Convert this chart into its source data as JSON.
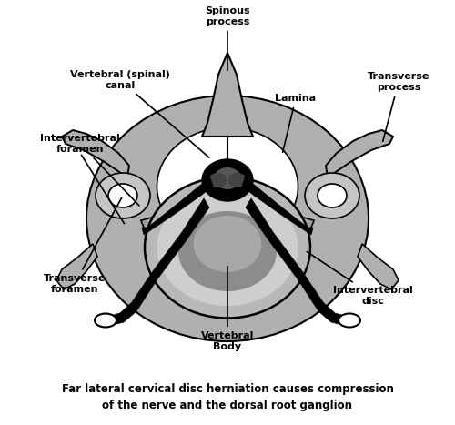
{
  "caption_line1": "Far lateral cervical disc herniation causes compression",
  "caption_line2": "of the nerve and the dorsal root ganglion",
  "background_color": "#ffffff",
  "labels": {
    "spinous_process": "Spinous\nprocess",
    "vertebral_canal": "Vertebral (spinal)\ncanal",
    "lamina": "Lamina",
    "transverse_process": "Transverse\nprocess",
    "intervertebral_foramen": "Intervertebral\nforamen",
    "transverse_foramen": "Transverse\nforamen",
    "vertebral_body": "Vertebral\nBody",
    "intervertebral_disc": "Intervertebral\ndisc"
  },
  "figsize": [
    5.0,
    4.67
  ],
  "dpi": 100
}
